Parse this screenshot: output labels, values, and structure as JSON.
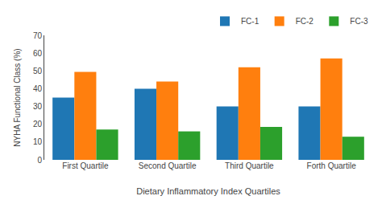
{
  "chart_data": {
    "type": "bar",
    "xlabel": "Dietary Inflammatory Index Quartiles",
    "ylabel": "NYHA Functional Class (%)",
    "categories": [
      "First Quartile",
      "Second Quartile",
      "Third Quartile",
      "Forth Quartile"
    ],
    "series": [
      {
        "name": "FC-1",
        "values": [
          35,
          40,
          30,
          30
        ]
      },
      {
        "name": "FC-2",
        "values": [
          49.5,
          44,
          52,
          57
        ]
      },
      {
        "name": "FC-3",
        "values": [
          17,
          16,
          18.5,
          13
        ]
      }
    ],
    "ylim": [
      0,
      70
    ],
    "yticks": [
      0,
      10,
      20,
      30,
      40,
      50,
      60,
      70
    ],
    "grid": false,
    "legend": "top right"
  }
}
